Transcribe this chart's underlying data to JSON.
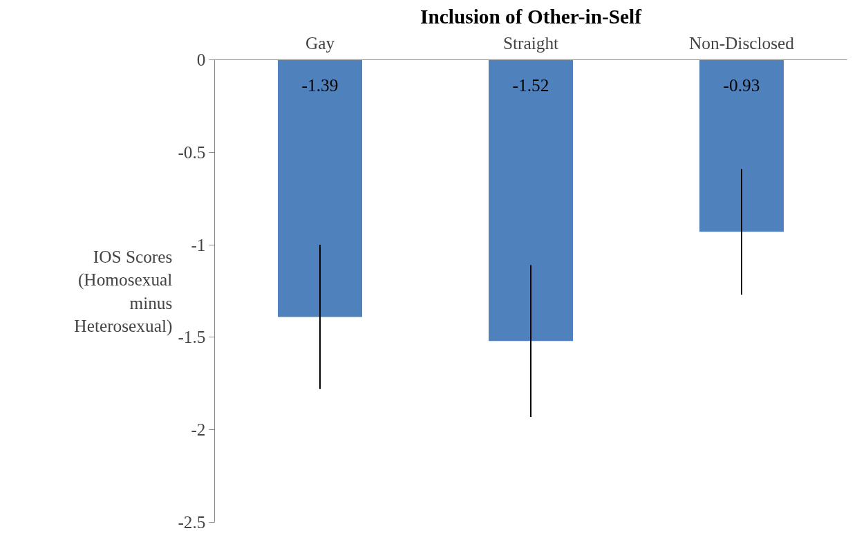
{
  "chart_data": {
    "type": "bar",
    "title": "Inclusion of Other-in-Self",
    "ylabel": "IOS Scores\n(Homosexual\nminus\nHeterosexual)",
    "categories": [
      "Gay",
      "Straight",
      "Non-Disclosed"
    ],
    "values": [
      -1.39,
      -1.52,
      -0.93
    ],
    "errors": [
      0.39,
      0.41,
      0.34
    ],
    "color": "#4f81bd",
    "ylim": [
      -2.5,
      0
    ],
    "yticks": [
      0,
      -0.5,
      -1,
      -1.5,
      -2,
      -2.5
    ],
    "data_labels": true,
    "grid": false
  }
}
